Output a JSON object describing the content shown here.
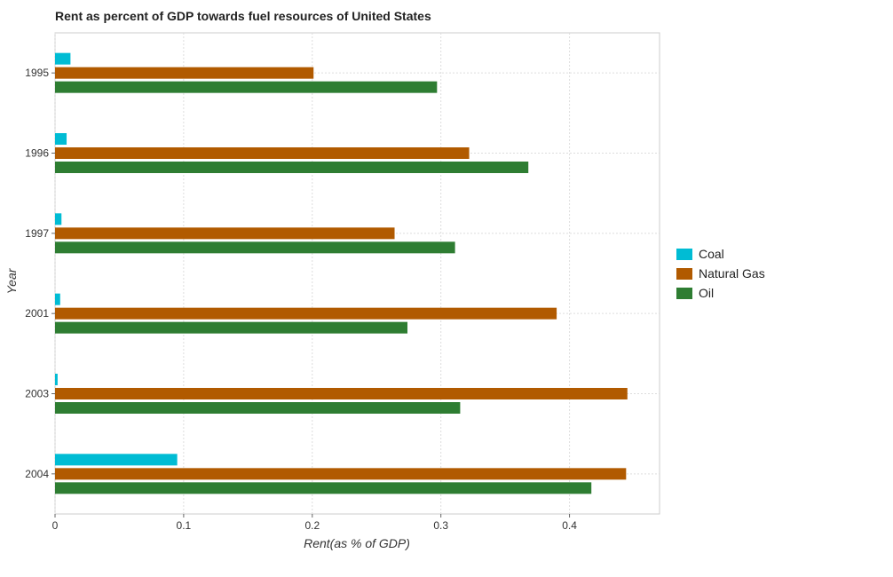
{
  "chart_data": {
    "type": "bar",
    "orientation": "horizontal",
    "title": "Rent as percent of GDP towards fuel resources of United States",
    "xlabel": "Rent(as % of GDP)",
    "ylabel": "Year",
    "categories": [
      "1995",
      "1996",
      "1997",
      "2001",
      "2003",
      "2004"
    ],
    "series": [
      {
        "name": "Coal",
        "color": "#00bcd4",
        "values": [
          0.012,
          0.009,
          0.005,
          0.004,
          0.002,
          0.095
        ]
      },
      {
        "name": "Natural Gas",
        "color": "#b15a00",
        "values": [
          0.201,
          0.322,
          0.264,
          0.39,
          0.445,
          0.444
        ]
      },
      {
        "name": "Oil",
        "color": "#2e7d32",
        "values": [
          0.297,
          0.368,
          0.311,
          0.274,
          0.315,
          0.417
        ]
      }
    ],
    "xlim": [
      0,
      0.47
    ],
    "xticks": [
      0,
      0.1,
      0.2,
      0.3,
      0.4
    ],
    "xtick_labels": [
      "0",
      "0.1",
      "0.2",
      "0.3",
      "0.4"
    ],
    "grid": true,
    "legend": "right"
  }
}
